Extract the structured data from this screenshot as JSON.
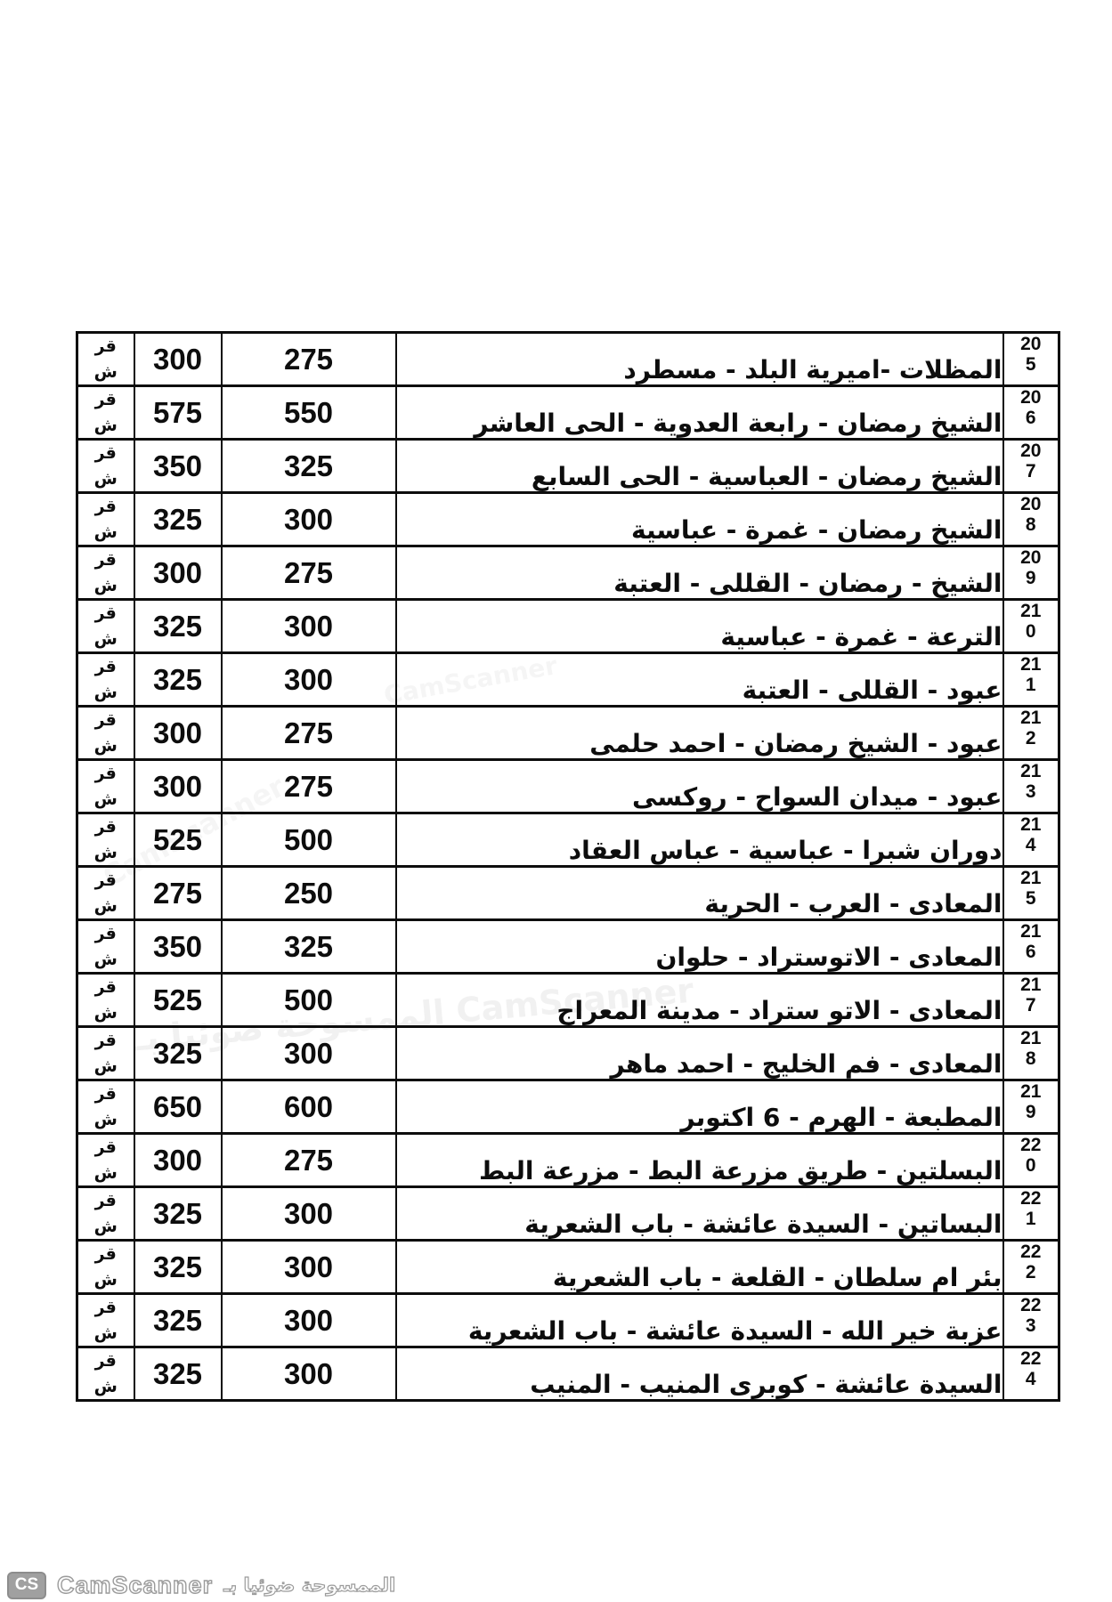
{
  "page": {
    "background": "#ffffff",
    "text_color": "#0d0d0d",
    "border_color": "#0d0d0d"
  },
  "table": {
    "unit_top": "قر",
    "unit_bottom": "ش",
    "rows": [
      {
        "id_top": "20",
        "id_bottom": "5",
        "route": "المظلات -اميرية البلد - مسطرد",
        "fare_low": "275",
        "fare_high": "300"
      },
      {
        "id_top": "20",
        "id_bottom": "6",
        "route": "الشيخ رمضان - رابعة العدوية - الحى العاشر",
        "fare_low": "550",
        "fare_high": "575"
      },
      {
        "id_top": "20",
        "id_bottom": "7",
        "route": "الشيخ رمضان - العباسية - الحى السابع",
        "fare_low": "325",
        "fare_high": "350"
      },
      {
        "id_top": "20",
        "id_bottom": "8",
        "route": "الشيخ رمضان - غمرة - عباسية",
        "fare_low": "300",
        "fare_high": "325"
      },
      {
        "id_top": "20",
        "id_bottom": "9",
        "route": "الشيخ - رمضان - القللى - العتبة",
        "fare_low": "275",
        "fare_high": "300"
      },
      {
        "id_top": "21",
        "id_bottom": "0",
        "route": "الترعة - غمرة - عباسية",
        "fare_low": "300",
        "fare_high": "325"
      },
      {
        "id_top": "21",
        "id_bottom": "1",
        "route": "عبود - القللى - العتبة",
        "fare_low": "300",
        "fare_high": "325"
      },
      {
        "id_top": "21",
        "id_bottom": "2",
        "route": "عبود - الشيخ رمضان - احمد حلمى",
        "fare_low": "275",
        "fare_high": "300"
      },
      {
        "id_top": "21",
        "id_bottom": "3",
        "route": "عبود - ميدان السواح - روكسى",
        "fare_low": "275",
        "fare_high": "300"
      },
      {
        "id_top": "21",
        "id_bottom": "4",
        "route": "دوران شبرا - عباسية - عباس العقاد",
        "fare_low": "500",
        "fare_high": "525"
      },
      {
        "id_top": "21",
        "id_bottom": "5",
        "route": "المعادى - العرب - الحرية",
        "fare_low": "250",
        "fare_high": "275"
      },
      {
        "id_top": "21",
        "id_bottom": "6",
        "route": "المعادى - الاتوستراد - حلوان",
        "fare_low": "325",
        "fare_high": "350"
      },
      {
        "id_top": "21",
        "id_bottom": "7",
        "route": "المعادى - الاتو ستراد - مدينة المعراج",
        "fare_low": "500",
        "fare_high": "525"
      },
      {
        "id_top": "21",
        "id_bottom": "8",
        "route": "المعادى - فم الخليج - احمد ماهر",
        "fare_low": "300",
        "fare_high": "325"
      },
      {
        "id_top": "21",
        "id_bottom": "9",
        "route": "المطبعة - الهرم - 6 اكتوبر",
        "fare_low": "600",
        "fare_high": "650"
      },
      {
        "id_top": "22",
        "id_bottom": "0",
        "route": "البسلتين - طريق مزرعة البط - مزرعة البط",
        "fare_low": "275",
        "fare_high": "300"
      },
      {
        "id_top": "22",
        "id_bottom": "1",
        "route": "البساتين - السيدة عائشة - باب الشعرية",
        "fare_low": "300",
        "fare_high": "325"
      },
      {
        "id_top": "22",
        "id_bottom": "2",
        "route": "بئر ام سلطان - القلعة - باب الشعرية",
        "fare_low": "300",
        "fare_high": "325"
      },
      {
        "id_top": "22",
        "id_bottom": "3",
        "route": "عزبة خير الله - السيدة عائشة - باب الشعرية",
        "fare_low": "300",
        "fare_high": "325"
      },
      {
        "id_top": "22",
        "id_bottom": "4",
        "route": "السيدة عائشة - كوبرى المنيب - المنيب",
        "fare_low": "300",
        "fare_high": "325"
      }
    ]
  },
  "ghosts": [
    {
      "text": "الممسوحة ضوئيا بـ CamScanner"
    },
    {
      "text": "CamScanner"
    },
    {
      "text": "CamScanner"
    }
  ],
  "footer": {
    "logo": "CS",
    "brand": "CamScanner",
    "caption": "الممسوحة ضوئيا بـ"
  }
}
